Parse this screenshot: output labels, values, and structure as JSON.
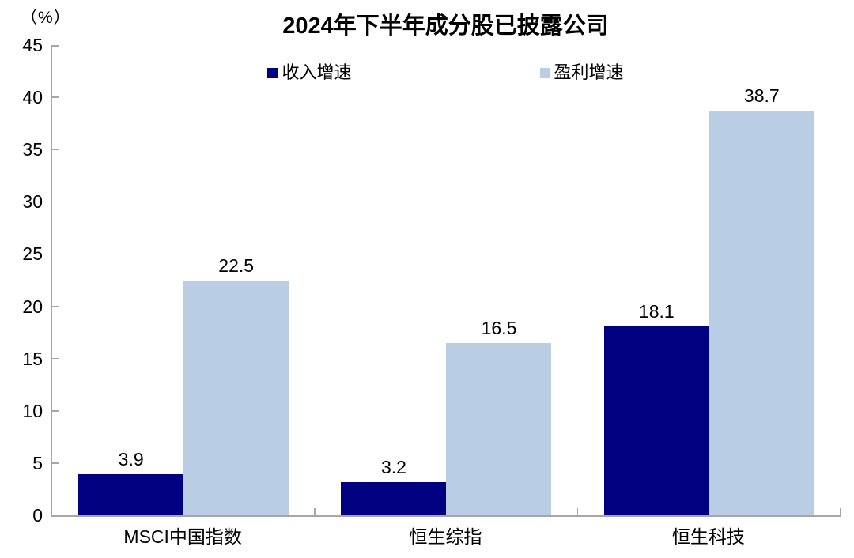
{
  "chart_data": {
    "type": "bar",
    "title": "2024年下半年成分股已披露公司",
    "unit_label": "（%）",
    "categories": [
      "MSCI中国指数",
      "恒生综指",
      "恒生科技"
    ],
    "series": [
      {
        "name": "收入增速",
        "color": "#000080",
        "values": [
          3.9,
          3.2,
          18.1
        ],
        "labels": [
          "3.9",
          "3.2",
          "18.1"
        ]
      },
      {
        "name": "盈利增速",
        "color": "#b9cde4",
        "values": [
          22.5,
          16.5,
          38.7
        ],
        "labels": [
          "22.5",
          "16.5",
          "38.7"
        ]
      }
    ],
    "ylim": [
      0,
      45
    ],
    "yticks": [
      0,
      5,
      10,
      15,
      20,
      25,
      30,
      35,
      40,
      45
    ],
    "grid": false,
    "legend_position": "top-center",
    "axis_color": "#a6a6a6",
    "text_color": "#000000",
    "background_color": "#ffffff"
  }
}
